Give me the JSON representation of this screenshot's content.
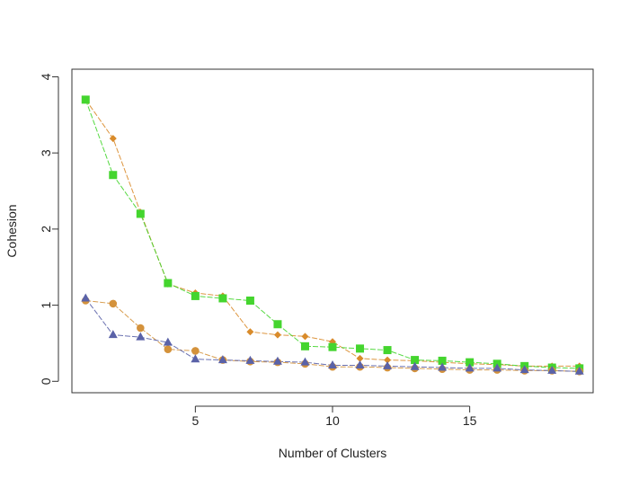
{
  "chart_data": {
    "type": "line",
    "title": "",
    "xlabel": "Number of Clusters",
    "ylabel": "Cohesion",
    "xlim": [
      0.5,
      19.5
    ],
    "ylim": [
      -0.15,
      4.1
    ],
    "xticks": [
      5,
      10,
      15
    ],
    "yticks": [
      0,
      1,
      2,
      3,
      4
    ],
    "grid": false,
    "legend": "none",
    "series": [
      {
        "color": "#D98B2B",
        "marker": "diamond",
        "x": [
          1,
          2,
          3,
          4,
          5,
          6,
          7,
          8,
          9,
          10,
          11,
          12,
          13,
          14,
          15,
          16,
          17,
          18,
          19
        ],
        "values": [
          3.7,
          3.19,
          2.22,
          1.28,
          1.16,
          1.12,
          0.65,
          0.61,
          0.59,
          0.52,
          0.3,
          0.28,
          0.27,
          0.25,
          0.23,
          0.22,
          0.2,
          0.2,
          0.2
        ]
      },
      {
        "color": "#44D52E",
        "marker": "square",
        "x": [
          1,
          2,
          3,
          4,
          5,
          6,
          7,
          8,
          9,
          10,
          11,
          12,
          13,
          14,
          15,
          16,
          17,
          18,
          19
        ],
        "values": [
          3.7,
          2.71,
          2.2,
          1.29,
          1.12,
          1.09,
          1.06,
          0.75,
          0.46,
          0.45,
          0.43,
          0.41,
          0.28,
          0.27,
          0.25,
          0.23,
          0.2,
          0.18,
          0.17
        ]
      },
      {
        "color": "#D4923B",
        "marker": "circle",
        "x": [
          1,
          2,
          3,
          4,
          5,
          6,
          7,
          8,
          9,
          10,
          11,
          12,
          13,
          14,
          15,
          16,
          17,
          18,
          19
        ],
        "values": [
          1.06,
          1.02,
          0.7,
          0.42,
          0.4,
          0.28,
          0.26,
          0.25,
          0.23,
          0.19,
          0.19,
          0.18,
          0.17,
          0.16,
          0.15,
          0.15,
          0.14,
          0.14,
          0.13
        ]
      },
      {
        "color": "#5A62A8",
        "marker": "triangle",
        "x": [
          1,
          2,
          3,
          4,
          5,
          6,
          7,
          8,
          9,
          10,
          11,
          12,
          13,
          14,
          15,
          16,
          17,
          18,
          19
        ],
        "values": [
          1.09,
          0.61,
          0.58,
          0.51,
          0.29,
          0.28,
          0.27,
          0.26,
          0.25,
          0.21,
          0.21,
          0.2,
          0.19,
          0.18,
          0.17,
          0.17,
          0.15,
          0.14,
          0.13
        ]
      }
    ]
  }
}
